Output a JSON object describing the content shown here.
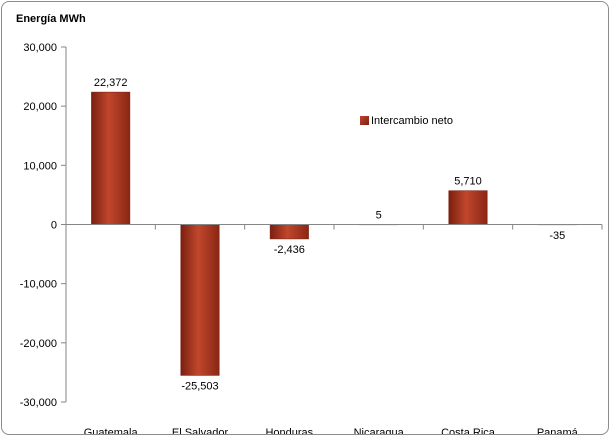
{
  "chart_data": {
    "type": "bar",
    "title": "Energía MWh",
    "ylabel": "Energía MWh",
    "xlabel": "",
    "categories": [
      "Guatemala",
      "El Salvador",
      "Honduras",
      "Nicaragua",
      "Costa Rica",
      "Panamá"
    ],
    "series": [
      {
        "name": "Intercambio neto",
        "values": [
          22372,
          -25503,
          -2436,
          5,
          5710,
          -35
        ],
        "value_labels": [
          "22,372",
          "-25,503",
          "-2,436",
          "5",
          "5,710",
          "-35"
        ]
      }
    ],
    "ylim": [
      -30000,
      30000
    ],
    "yticks": [
      30000,
      20000,
      10000,
      0,
      -10000,
      -20000,
      -30000
    ],
    "ytick_labels": [
      "30,000",
      "20,000",
      "10,000",
      "0",
      "-10,000",
      "-20,000",
      "-30,000"
    ],
    "grid": false,
    "legend_position": "right, inside plot area",
    "colors": {
      "bar_light": "#c0472c",
      "bar_mid": "#a3311d",
      "bar_dark": "#7a2010",
      "axis": "#868686"
    }
  }
}
